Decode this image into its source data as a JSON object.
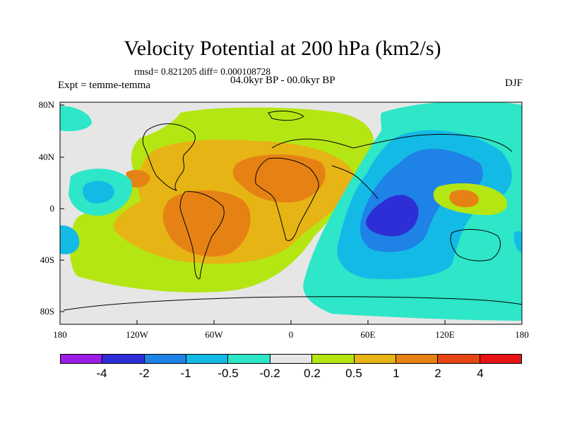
{
  "title": "Velocity Potential at 200 hPa (km2/s)",
  "stats": "rmsd= 0.821205 diff= 0.000108728",
  "period": "04.0kyr BP - 00.0kyr BP",
  "experiment": "Expt = temme-temma",
  "season": "DJF",
  "x_ticks": [
    "180",
    "120W",
    "60W",
    "0",
    "60E",
    "120E",
    "180"
  ],
  "y_ticks": [
    "80N",
    "40N",
    "0",
    "40S",
    "80S"
  ],
  "colorbar": {
    "colors": [
      "#9a1ee6",
      "#2e2ed6",
      "#1e82e6",
      "#14bae6",
      "#2ee6c8",
      "#e6e6e6",
      "#b4e614",
      "#e6b414",
      "#e68214",
      "#e64614",
      "#e61414"
    ],
    "labels": [
      "-4",
      "-2",
      "-1",
      "-0.5",
      "-0.2",
      "0.2",
      "0.5",
      "1",
      "2",
      "4"
    ]
  }
}
